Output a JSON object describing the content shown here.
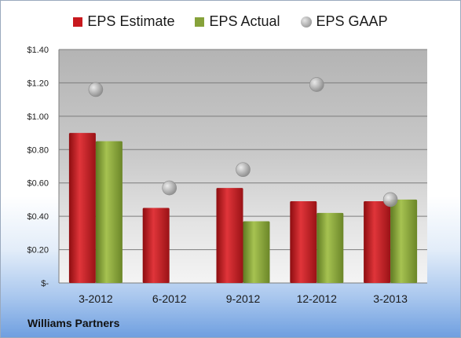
{
  "legend": {
    "estimate": "EPS Estimate",
    "actual": "EPS Actual",
    "gaap": "EPS GAAP"
  },
  "footer": "Williams Partners",
  "chart_data": {
    "type": "bar",
    "categories": [
      "3-2012",
      "6-2012",
      "9-2012",
      "12-2012",
      "3-2013"
    ],
    "series": [
      {
        "name": "EPS Estimate",
        "type": "bar",
        "color": "#c8191e",
        "values": [
          0.9,
          0.45,
          0.57,
          0.49,
          0.49
        ]
      },
      {
        "name": "EPS Actual",
        "type": "bar",
        "color": "#86a23a",
        "values": [
          0.85,
          null,
          0.37,
          0.42,
          0.5
        ]
      },
      {
        "name": "EPS GAAP",
        "type": "scatter",
        "color": "#a8a8a8",
        "values": [
          1.16,
          0.57,
          0.68,
          1.19,
          0.5
        ]
      }
    ],
    "yticks": [
      0,
      0.2,
      0.4,
      0.6,
      0.8,
      1.0,
      1.2,
      1.4
    ],
    "ytick_labels": [
      "$-",
      "$0.20",
      "$0.40",
      "$0.60",
      "$0.80",
      "$1.00",
      "$1.20",
      "$1.40"
    ],
    "ylim": [
      0,
      1.4
    ],
    "grid": true,
    "legend_position": "top"
  }
}
